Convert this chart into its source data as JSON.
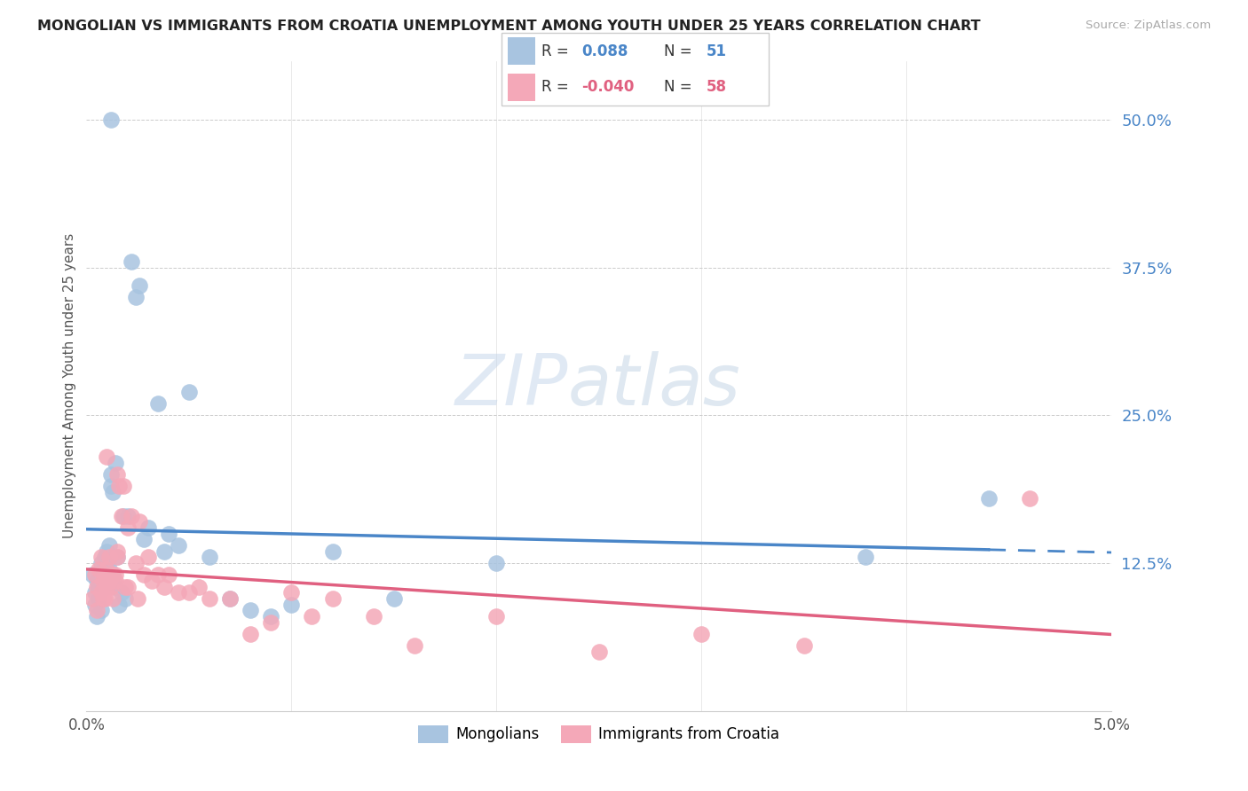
{
  "title": "MONGOLIAN VS IMMIGRANTS FROM CROATIA UNEMPLOYMENT AMONG YOUTH UNDER 25 YEARS CORRELATION CHART",
  "source": "Source: ZipAtlas.com",
  "ylabel": "Unemployment Among Youth under 25 years",
  "legend_label1": "Mongolians",
  "legend_label2": "Immigrants from Croatia",
  "r1": "0.088",
  "n1": "51",
  "r2": "-0.040",
  "n2": "58",
  "color_blue": "#a8c4e0",
  "color_pink": "#f4a8b8",
  "color_blue_line": "#4a86c8",
  "color_pink_line": "#e06080",
  "watermark_zip": "ZIP",
  "watermark_atlas": "atlas",
  "ytick_labels": [
    "12.5%",
    "25.0%",
    "37.5%",
    "50.0%"
  ],
  "ytick_values": [
    0.125,
    0.25,
    0.375,
    0.5
  ],
  "blue_scatter_x": [
    0.0003,
    0.0004,
    0.0004,
    0.0005,
    0.0005,
    0.0006,
    0.0006,
    0.0007,
    0.0007,
    0.0008,
    0.0008,
    0.0009,
    0.0009,
    0.001,
    0.001,
    0.001,
    0.0011,
    0.0011,
    0.0012,
    0.0012,
    0.0013,
    0.0013,
    0.0014,
    0.0014,
    0.0015,
    0.0016,
    0.0017,
    0.0018,
    0.0019,
    0.002,
    0.0022,
    0.0024,
    0.0026,
    0.0028,
    0.003,
    0.0035,
    0.0038,
    0.004,
    0.0045,
    0.005,
    0.006,
    0.007,
    0.008,
    0.009,
    0.01,
    0.012,
    0.015,
    0.02,
    0.038,
    0.044,
    0.0012
  ],
  "blue_scatter_y": [
    0.115,
    0.09,
    0.1,
    0.11,
    0.08,
    0.095,
    0.105,
    0.125,
    0.085,
    0.12,
    0.115,
    0.13,
    0.105,
    0.135,
    0.125,
    0.11,
    0.14,
    0.12,
    0.19,
    0.2,
    0.115,
    0.185,
    0.105,
    0.21,
    0.13,
    0.09,
    0.1,
    0.165,
    0.095,
    0.165,
    0.38,
    0.35,
    0.36,
    0.145,
    0.155,
    0.26,
    0.135,
    0.15,
    0.14,
    0.27,
    0.13,
    0.095,
    0.085,
    0.08,
    0.09,
    0.135,
    0.095,
    0.125,
    0.13,
    0.18,
    0.5
  ],
  "pink_scatter_x": [
    0.0003,
    0.0004,
    0.0005,
    0.0005,
    0.0006,
    0.0007,
    0.0007,
    0.0008,
    0.0008,
    0.0009,
    0.0009,
    0.001,
    0.001,
    0.0011,
    0.0011,
    0.0012,
    0.0012,
    0.0013,
    0.0013,
    0.0014,
    0.0014,
    0.0015,
    0.0016,
    0.0017,
    0.0018,
    0.0019,
    0.002,
    0.0022,
    0.0024,
    0.0026,
    0.0028,
    0.003,
    0.0032,
    0.0035,
    0.0038,
    0.004,
    0.0045,
    0.005,
    0.0055,
    0.006,
    0.007,
    0.008,
    0.009,
    0.01,
    0.011,
    0.012,
    0.014,
    0.016,
    0.02,
    0.025,
    0.03,
    0.035,
    0.001,
    0.0015,
    0.002,
    0.0025,
    0.0015,
    0.046
  ],
  "pink_scatter_y": [
    0.095,
    0.115,
    0.105,
    0.085,
    0.12,
    0.13,
    0.1,
    0.11,
    0.095,
    0.115,
    0.095,
    0.12,
    0.105,
    0.13,
    0.11,
    0.105,
    0.115,
    0.115,
    0.095,
    0.11,
    0.115,
    0.13,
    0.19,
    0.165,
    0.19,
    0.105,
    0.155,
    0.165,
    0.125,
    0.16,
    0.115,
    0.13,
    0.11,
    0.115,
    0.105,
    0.115,
    0.1,
    0.1,
    0.105,
    0.095,
    0.095,
    0.065,
    0.075,
    0.1,
    0.08,
    0.095,
    0.08,
    0.055,
    0.08,
    0.05,
    0.065,
    0.055,
    0.215,
    0.135,
    0.105,
    0.095,
    0.2,
    0.18
  ]
}
